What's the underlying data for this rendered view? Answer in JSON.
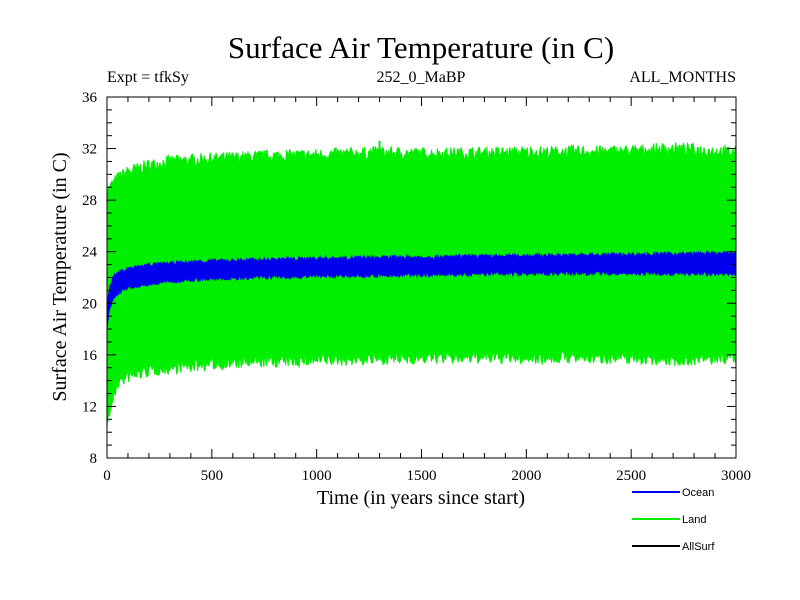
{
  "chart_data": {
    "type": "line",
    "title": "Surface Air Temperature (in C)",
    "subtitle_left": "Expt = tfkSy",
    "subtitle_center": "252_0_MaBP",
    "subtitle_right": "ALL_MONTHS",
    "xlabel": "Time (in years since start)",
    "ylabel": "Surface Air Temperature (in C)",
    "xlim": [
      0,
      3000
    ],
    "ylim": [
      8,
      36
    ],
    "xticks": [
      0,
      500,
      1000,
      1500,
      2000,
      2500,
      3000
    ],
    "yticks": [
      8,
      12,
      16,
      20,
      24,
      28,
      32,
      36
    ],
    "legend_position": "bottom-right",
    "series": [
      {
        "name": "Land",
        "color": "#00ee00",
        "band_x": [
          0,
          50,
          100,
          200,
          300,
          500,
          750,
          1000,
          1300,
          1500,
          2000,
          2500,
          2700,
          3000
        ],
        "band_low": [
          11.0,
          14.0,
          14.5,
          15.0,
          15.2,
          15.5,
          15.7,
          15.8,
          15.9,
          16.0,
          16.0,
          16.0,
          15.8,
          16.0
        ],
        "band_high": [
          28.5,
          29.5,
          30.0,
          30.5,
          30.8,
          31.0,
          31.2,
          31.3,
          31.5,
          31.4,
          31.5,
          31.6,
          31.8,
          31.5
        ],
        "peak_max": 32.6,
        "peak_min": 10.8
      },
      {
        "name": "Ocean",
        "color": "#0000ee",
        "band_x": [
          0,
          10,
          30,
          60,
          100,
          200,
          300,
          500,
          750,
          1000,
          1500,
          2000,
          2500,
          3000
        ],
        "band_low": [
          18.0,
          19.5,
          20.5,
          21.0,
          21.3,
          21.6,
          21.8,
          22.0,
          22.1,
          22.2,
          22.3,
          22.4,
          22.4,
          22.4
        ],
        "band_high": [
          19.5,
          21.0,
          22.0,
          22.3,
          22.6,
          22.9,
          23.0,
          23.2,
          23.3,
          23.4,
          23.5,
          23.6,
          23.7,
          23.8
        ]
      },
      {
        "name": "AllSurf",
        "color": "#000000"
      }
    ]
  }
}
